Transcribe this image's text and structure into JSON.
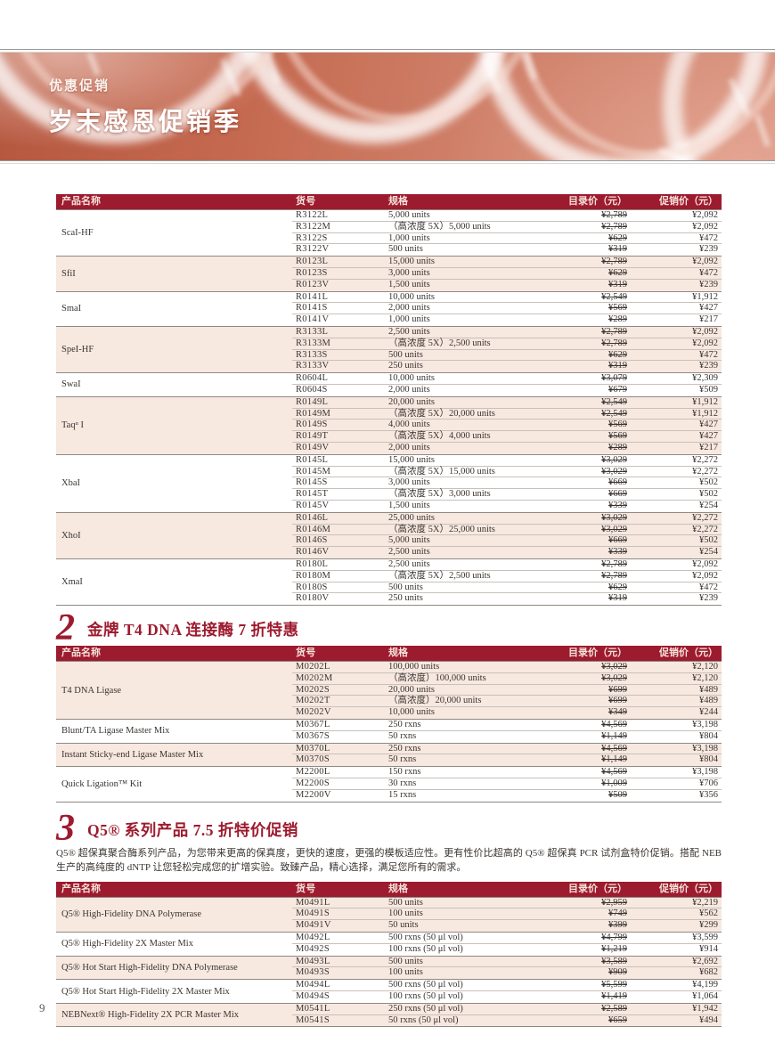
{
  "banner": {
    "eyebrow": "优惠促销",
    "title": "岁末感恩促销季"
  },
  "table_headers": {
    "product": "产品名称",
    "catalog": "货号",
    "spec": "规格",
    "list_price": "目录价（元）",
    "promo_price": "促销价（元）"
  },
  "sections": [
    {
      "number": "",
      "heading": "",
      "intro": "",
      "groups": [
        {
          "name": "ScaI-HF",
          "rows": [
            {
              "cat": "R3122L",
              "spec": "5,000 units",
              "list": "¥2,789",
              "promo": "¥2,092"
            },
            {
              "cat": "R3122M",
              "spec": "（高浓度 5X）5,000 units",
              "list": "¥2,789",
              "promo": "¥2,092"
            },
            {
              "cat": "R3122S",
              "spec": "1,000 units",
              "list": "¥629",
              "promo": "¥472"
            },
            {
              "cat": "R3122V",
              "spec": "500 units",
              "list": "¥319",
              "promo": "¥239"
            }
          ]
        },
        {
          "name": "SfiI",
          "rows": [
            {
              "cat": "R0123L",
              "spec": "15,000 units",
              "list": "¥2,789",
              "promo": "¥2,092"
            },
            {
              "cat": "R0123S",
              "spec": "3,000 units",
              "list": "¥629",
              "promo": "¥472"
            },
            {
              "cat": "R0123V",
              "spec": "1,500 units",
              "list": "¥319",
              "promo": "¥239"
            }
          ]
        },
        {
          "name": "SmaI",
          "rows": [
            {
              "cat": "R0141L",
              "spec": "10,000 units",
              "list": "¥2,549",
              "promo": "¥1,912"
            },
            {
              "cat": "R0141S",
              "spec": "2,000 units",
              "list": "¥569",
              "promo": "¥427"
            },
            {
              "cat": "R0141V",
              "spec": "1,000 units",
              "list": "¥289",
              "promo": "¥217"
            }
          ]
        },
        {
          "name": "SpeI-HF",
          "rows": [
            {
              "cat": "R3133L",
              "spec": "2,500 units",
              "list": "¥2,789",
              "promo": "¥2,092"
            },
            {
              "cat": "R3133M",
              "spec": "（高浓度 5X）2,500 units",
              "list": "¥2,789",
              "promo": "¥2,092"
            },
            {
              "cat": "R3133S",
              "spec": "500 units",
              "list": "¥629",
              "promo": "¥472"
            },
            {
              "cat": "R3133V",
              "spec": "250 units",
              "list": "¥319",
              "promo": "¥239"
            }
          ]
        },
        {
          "name": "SwaI",
          "rows": [
            {
              "cat": "R0604L",
              "spec": "10,000 units",
              "list": "¥3,079",
              "promo": "¥2,309"
            },
            {
              "cat": "R0604S",
              "spec": "2,000 units",
              "list": "¥679",
              "promo": "¥509"
            }
          ]
        },
        {
          "name": "Taqᵅ I",
          "rows": [
            {
              "cat": "R0149L",
              "spec": "20,000 units",
              "list": "¥2,549",
              "promo": "¥1,912"
            },
            {
              "cat": "R0149M",
              "spec": "（高浓度 5X）20,000 units",
              "list": "¥2,549",
              "promo": "¥1,912"
            },
            {
              "cat": "R0149S",
              "spec": "4,000 units",
              "list": "¥569",
              "promo": "¥427"
            },
            {
              "cat": "R0149T",
              "spec": "（高浓度 5X）4,000 units",
              "list": "¥569",
              "promo": "¥427"
            },
            {
              "cat": "R0149V",
              "spec": "2,000 units",
              "list": "¥289",
              "promo": "¥217"
            }
          ]
        },
        {
          "name": "XbaI",
          "rows": [
            {
              "cat": "R0145L",
              "spec": "15,000 units",
              "list": "¥3,029",
              "promo": "¥2,272"
            },
            {
              "cat": "R0145M",
              "spec": "（高浓度 5X）15,000 units",
              "list": "¥3,029",
              "promo": "¥2,272"
            },
            {
              "cat": "R0145S",
              "spec": "3,000 units",
              "list": "¥669",
              "promo": "¥502"
            },
            {
              "cat": "R0145T",
              "spec": "（高浓度 5X）3,000 units",
              "list": "¥669",
              "promo": "¥502"
            },
            {
              "cat": "R0145V",
              "spec": "1,500 units",
              "list": "¥339",
              "promo": "¥254"
            }
          ]
        },
        {
          "name": "XhoI",
          "rows": [
            {
              "cat": "R0146L",
              "spec": "25,000 units",
              "list": "¥3,029",
              "promo": "¥2,272"
            },
            {
              "cat": "R0146M",
              "spec": "（高浓度 5X）25,000 units",
              "list": "¥3,029",
              "promo": "¥2,272"
            },
            {
              "cat": "R0146S",
              "spec": "5,000 units",
              "list": "¥669",
              "promo": "¥502"
            },
            {
              "cat": "R0146V",
              "spec": "2,500 units",
              "list": "¥339",
              "promo": "¥254"
            }
          ]
        },
        {
          "name": "XmaI",
          "rows": [
            {
              "cat": "R0180L",
              "spec": "2,500 units",
              "list": "¥2,789",
              "promo": "¥2,092"
            },
            {
              "cat": "R0180M",
              "spec": "（高浓度 5X）2,500 units",
              "list": "¥2,789",
              "promo": "¥2,092"
            },
            {
              "cat": "R0180S",
              "spec": "500 units",
              "list": "¥629",
              "promo": "¥472"
            },
            {
              "cat": "R0180V",
              "spec": "250 units",
              "list": "¥319",
              "promo": "¥239"
            }
          ]
        }
      ]
    },
    {
      "number": "2",
      "heading": "金牌 T4 DNA 连接酶 7 折特惠",
      "intro": "",
      "groups": [
        {
          "name": "T4 DNA Ligase",
          "rows": [
            {
              "cat": "M0202L",
              "spec": "100,000 units",
              "list": "¥3,029",
              "promo": "¥2,120"
            },
            {
              "cat": "M0202M",
              "spec": "（高浓度）100,000 units",
              "list": "¥3,029",
              "promo": "¥2,120"
            },
            {
              "cat": "M0202S",
              "spec": "20,000 units",
              "list": "¥699",
              "promo": "¥489"
            },
            {
              "cat": "M0202T",
              "spec": "（高浓度）20,000 units",
              "list": "¥699",
              "promo": "¥489"
            },
            {
              "cat": "M0202V",
              "spec": "10,000 units",
              "list": "¥349",
              "promo": "¥244"
            }
          ]
        },
        {
          "name": "Blunt/TA Ligase Master Mix",
          "rows": [
            {
              "cat": "M0367L",
              "spec": "250 rxns",
              "list": "¥4,569",
              "promo": "¥3,198"
            },
            {
              "cat": "M0367S",
              "spec": "50 rxns",
              "list": "¥1,149",
              "promo": "¥804"
            }
          ]
        },
        {
          "name": "Instant Sticky-end Ligase Master Mix",
          "rows": [
            {
              "cat": "M0370L",
              "spec": "250 rxns",
              "list": "¥4,569",
              "promo": "¥3,198"
            },
            {
              "cat": "M0370S",
              "spec": "50 rxns",
              "list": "¥1,149",
              "promo": "¥804"
            }
          ]
        },
        {
          "name": "Quick Ligation™ Kit",
          "rows": [
            {
              "cat": "M2200L",
              "spec": "150 rxns",
              "list": "¥4,569",
              "promo": "¥3,198"
            },
            {
              "cat": "M2200S",
              "spec": "30 rxns",
              "list": "¥1,009",
              "promo": "¥706"
            },
            {
              "cat": "M2200V",
              "spec": "15 rxns",
              "list": "¥509",
              "promo": "¥356"
            }
          ]
        }
      ]
    },
    {
      "number": "3",
      "heading": "Q5® 系列产品 7.5 折特价促销",
      "intro": "Q5® 超保真聚合酶系列产品，为您带来更高的保真度，更快的速度，更强的模板适应性。更有性价比超高的 Q5® 超保真 PCR 试剂盒特价促销。搭配 NEB 生产的高纯度的 dNTP 让您轻松完成您的扩增实验。致臻产品，精心选择，满足您所有的需求。",
      "groups": [
        {
          "name": "Q5® High-Fidelity DNA Polymerase",
          "rows": [
            {
              "cat": "M0491L",
              "spec": "500 units",
              "list": "¥2,959",
              "promo": "¥2,219"
            },
            {
              "cat": "M0491S",
              "spec": "100 units",
              "list": "¥749",
              "promo": "¥562"
            },
            {
              "cat": "M0491V",
              "spec": "50 units",
              "list": "¥399",
              "promo": "¥299"
            }
          ]
        },
        {
          "name": "Q5® High-Fidelity 2X Master Mix",
          "rows": [
            {
              "cat": "M0492L",
              "spec": "500 rxns (50 μl vol)",
              "list": "¥4,799",
              "promo": "¥3,599"
            },
            {
              "cat": "M0492S",
              "spec": "100 rxns (50 μl vol)",
              "list": "¥1,219",
              "promo": "¥914"
            }
          ]
        },
        {
          "name": "Q5® Hot Start High-Fidelity DNA Polymerase",
          "rows": [
            {
              "cat": "M0493L",
              "spec": "500 units",
              "list": "¥3,589",
              "promo": "¥2,692"
            },
            {
              "cat": "M0493S",
              "spec": "100 units",
              "list": "¥909",
              "promo": "¥682"
            }
          ]
        },
        {
          "name": "Q5® Hot Start High-Fidelity 2X Master Mix",
          "rows": [
            {
              "cat": "M0494L",
              "spec": "500 rxns (50 μl vol)",
              "list": "¥5,599",
              "promo": "¥4,199"
            },
            {
              "cat": "M0494S",
              "spec": "100 rxns (50 μl vol)",
              "list": "¥1,419",
              "promo": "¥1,064"
            }
          ]
        },
        {
          "name": "NEBNext® High-Fidelity 2X PCR Master Mix",
          "rows": [
            {
              "cat": "M0541L",
              "spec": "250 rxns (50 μl vol)",
              "list": "¥2,589",
              "promo": "¥1,942"
            },
            {
              "cat": "M0541S",
              "spec": "50 rxns (50 μl vol)",
              "list": "¥659",
              "promo": "¥494"
            }
          ]
        }
      ]
    }
  ],
  "footer": {
    "page_number": "9"
  },
  "colors": {
    "header_red": "#9d1b2f",
    "group_pink": "#f7e8e0",
    "banner_red": "#c4684f"
  }
}
